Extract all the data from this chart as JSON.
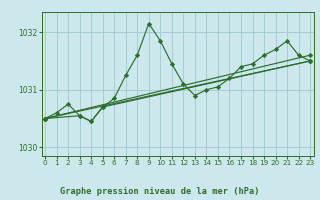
{
  "title": "Graphe pression niveau de la mer (hPa)",
  "bg_color": "#cce8ec",
  "grid_color": "#a0c8d0",
  "line_color": "#2d6e2d",
  "series": [
    {
      "x": [
        0,
        1,
        2,
        3,
        4,
        5,
        6,
        7,
        8,
        9,
        10,
        11,
        12,
        13,
        14,
        15,
        16,
        17,
        18,
        19,
        20,
        21,
        22,
        23
      ],
      "y": [
        1030.5,
        1030.6,
        1030.75,
        1030.55,
        1030.45,
        1030.7,
        1030.85,
        1031.25,
        1031.6,
        1032.15,
        1031.85,
        1031.45,
        1031.1,
        1030.9,
        1031.0,
        1031.05,
        1031.2,
        1031.4,
        1031.45,
        1031.6,
        1031.7,
        1031.85,
        1031.6,
        1031.5
      ]
    },
    {
      "x": [
        0,
        3,
        4,
        5,
        23
      ],
      "y": [
        1030.5,
        1030.55,
        1030.45,
        1030.7,
        1031.5
      ]
    },
    {
      "x": [
        0,
        23
      ],
      "y": [
        1030.5,
        1031.5
      ]
    },
    {
      "x": [
        0,
        23
      ],
      "y": [
        1030.5,
        1031.6
      ]
    }
  ],
  "xlim": [
    -0.3,
    23.3
  ],
  "ylim": [
    1029.85,
    1032.35
  ],
  "yticks": [
    1030,
    1031,
    1032
  ],
  "xticks": [
    0,
    1,
    2,
    3,
    4,
    5,
    6,
    7,
    8,
    9,
    10,
    11,
    12,
    13,
    14,
    15,
    16,
    17,
    18,
    19,
    20,
    21,
    22,
    23
  ],
  "marker": "D",
  "markersize": 2.2,
  "linewidth": 0.85
}
